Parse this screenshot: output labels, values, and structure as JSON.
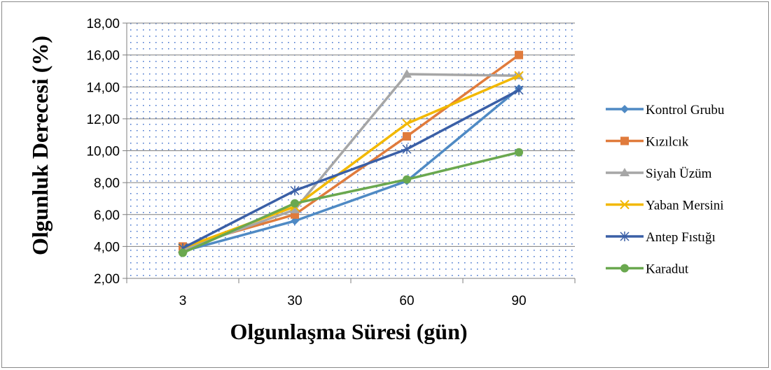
{
  "chart_data": {
    "type": "line",
    "categories": [
      "3",
      "30",
      "60",
      "90"
    ],
    "xlabel": "Olgunlaşma Süresi (gün)",
    "ylabel": "Olgunluk Derecesi (%)",
    "ylim": [
      2,
      18
    ],
    "ytick_step": 2,
    "ytick_labels": [
      "2,00",
      "4,00",
      "6,00",
      "8,00",
      "10,00",
      "12,00",
      "14,00",
      "16,00",
      "18,00"
    ],
    "grid": true,
    "legend_position": "right",
    "plot_background": "dotted-blue",
    "series": [
      {
        "name": "Kontrol Grubu",
        "values": [
          3.7,
          5.6,
          8.1,
          13.9
        ],
        "color": "#4f8ac4",
        "marker": "diamond"
      },
      {
        "name": "Kızılcık",
        "values": [
          4.0,
          6.0,
          10.9,
          16.0
        ],
        "color": "#e07b3c",
        "marker": "square"
      },
      {
        "name": "Siyah Üzüm",
        "values": [
          3.8,
          6.3,
          14.8,
          14.7
        ],
        "color": "#a6a6a6",
        "marker": "triangle"
      },
      {
        "name": "Yaban Mersini",
        "values": [
          3.9,
          6.5,
          11.7,
          14.7
        ],
        "color": "#f2b800",
        "marker": "x"
      },
      {
        "name": "Antep Fıstığı",
        "values": [
          3.9,
          7.5,
          10.1,
          13.8
        ],
        "color": "#3a5fa6",
        "marker": "star"
      },
      {
        "name": "Karadut",
        "values": [
          3.6,
          6.7,
          8.2,
          9.9
        ],
        "color": "#6aa84f",
        "marker": "circle"
      }
    ]
  }
}
